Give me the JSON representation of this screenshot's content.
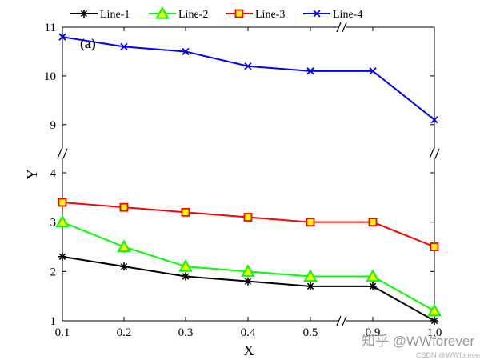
{
  "chart_data": {
    "type": "line",
    "panel_label": "(a)",
    "xlabel": "X",
    "ylabel": "Y",
    "x": [
      0.1,
      0.2,
      0.3,
      0.4,
      0.5,
      0.9,
      1.0
    ],
    "x_tick_labels": [
      "0.1",
      "0.2",
      "0.3",
      "0.4",
      "0.5",
      "0.9",
      "1.0"
    ],
    "x_break": [
      0.5,
      0.9
    ],
    "y_lower_range": [
      1,
      4
    ],
    "y_upper_range": [
      8.8,
      11
    ],
    "y_break": [
      4,
      8.8
    ],
    "y_ticks": [
      1,
      2,
      3,
      4,
      9,
      10,
      11
    ],
    "y_tick_labels": [
      "1",
      "2",
      "3",
      "4",
      "9",
      "10",
      "11"
    ],
    "grid": false,
    "legend_position": "top",
    "series": [
      {
        "name": "Line-1",
        "values": [
          2.3,
          2.1,
          1.9,
          1.8,
          1.7,
          1.7,
          1.0
        ],
        "color": "#000000",
        "marker": "asterisk"
      },
      {
        "name": "Line-2",
        "values": [
          3.0,
          2.5,
          2.1,
          2.0,
          1.9,
          1.9,
          1.2
        ],
        "color": "#00ff00",
        "marker": "triangle"
      },
      {
        "name": "Line-3",
        "values": [
          3.4,
          3.3,
          3.2,
          3.1,
          3.0,
          3.0,
          2.5
        ],
        "color": "#ff0000",
        "marker": "square"
      },
      {
        "name": "Line-4",
        "values": [
          10.8,
          10.6,
          10.5,
          10.2,
          10.1,
          10.1,
          9.1
        ],
        "color": "#0000ff",
        "marker": "x"
      }
    ]
  },
  "watermark": {
    "main": "知乎 @WWforever",
    "sub": "CSDN @WWforever"
  },
  "colors": {
    "triangle_fill": "#ffff00",
    "square_fill": "#ffff00",
    "axis": "#000000"
  }
}
